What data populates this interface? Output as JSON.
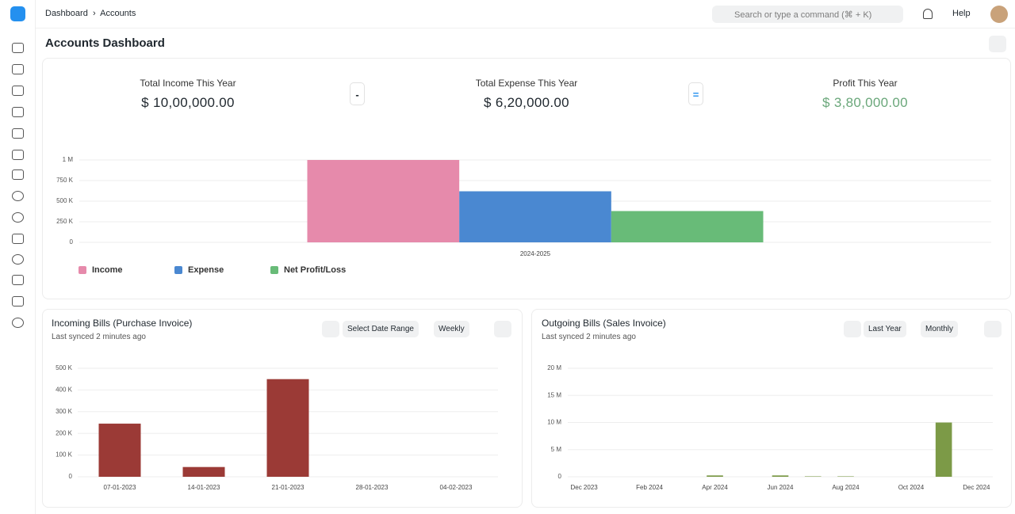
{
  "breadcrumb": [
    "Dashboard",
    "Accounts"
  ],
  "search_placeholder": "Search or type a command (⌘ + K)",
  "help": "Help",
  "page_title": "Accounts Dashboard",
  "summary": {
    "items": [
      {
        "label": "Total Income This Year",
        "value": "$ 10,00,000.00"
      },
      {
        "label": "Total Expense This Year",
        "value": "$ 6,20,000.00"
      },
      {
        "label": "Profit This Year",
        "value": "$ 3,80,000.00"
      }
    ],
    "operators": [
      "-",
      "="
    ]
  },
  "chart_data": [
    {
      "type": "bar",
      "categories": [
        "2024-2025"
      ],
      "series": [
        {
          "name": "Income",
          "color": "#e68aab",
          "values": [
            1000000
          ]
        },
        {
          "name": "Expense",
          "color": "#4a88d1",
          "values": [
            620000
          ]
        },
        {
          "name": "Net Profit/Loss",
          "color": "#68bb78",
          "values": [
            380000
          ]
        }
      ],
      "ylim": [
        0,
        1000000
      ],
      "yticks": [
        0,
        {
          "value": 250000,
          "label": "250 K"
        },
        {
          "value": 500000,
          "label": "500 K"
        },
        {
          "value": 750000,
          "label": "750 K"
        },
        {
          "value": 1000000,
          "label": "1 M"
        }
      ],
      "grid": true,
      "legend": "bottom"
    },
    {
      "type": "bar",
      "title": "Incoming Bills (Purchase Invoice)",
      "subtitle": "Last synced 2 minutes ago",
      "controls": [
        "Select Date Range",
        "Weekly"
      ],
      "categories": [
        "07-01-2023",
        "14-01-2023",
        "21-01-2023",
        "28-01-2023",
        "04-02-2023"
      ],
      "values": [
        245000,
        45000,
        450000,
        0,
        0
      ],
      "color": "#9b3a36",
      "ylim": [
        0,
        500000
      ],
      "yticks": [
        0,
        {
          "value": 100000,
          "label": "100 K"
        },
        {
          "value": 200000,
          "label": "200 K"
        },
        {
          "value": 300000,
          "label": "300 K"
        },
        {
          "value": 400000,
          "label": "400 K"
        },
        {
          "value": 500000,
          "label": "500 K"
        }
      ],
      "grid": true
    },
    {
      "type": "bar",
      "title": "Outgoing Bills (Sales Invoice)",
      "subtitle": "Last synced 2 minutes ago",
      "controls": [
        "Last Year",
        "Monthly"
      ],
      "categories": [
        "Dec 2023",
        null,
        "Feb 2024",
        null,
        "Apr 2024",
        null,
        "Jun 2024",
        null,
        "Aug 2024",
        null,
        "Oct 2024",
        null,
        "Dec 2024"
      ],
      "values": [
        0,
        0,
        0,
        0,
        250000,
        0,
        250000,
        80000,
        80000,
        0,
        0,
        10000000,
        0
      ],
      "color": "#7c9a47",
      "ylim": [
        0,
        20000000
      ],
      "yticks": [
        0,
        {
          "value": 5000000,
          "label": "5 M"
        },
        {
          "value": 10000000,
          "label": "10 M"
        },
        {
          "value": 15000000,
          "label": "15 M"
        },
        {
          "value": 20000000,
          "label": "20 M"
        }
      ],
      "grid": true
    }
  ]
}
